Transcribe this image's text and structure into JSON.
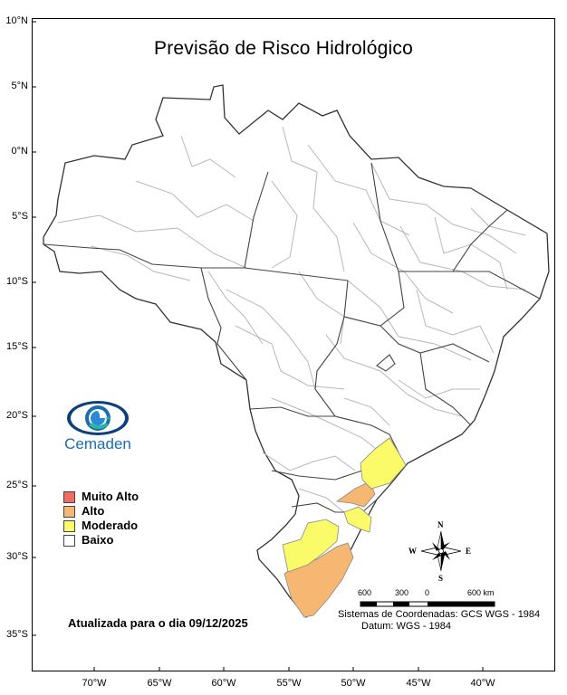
{
  "title": "Previsão de Risco Hidrológico",
  "latitude_labels": [
    "10°N",
    "5°N",
    "0°N",
    "5°S",
    "10°S",
    "15°S",
    "20°S",
    "25°S",
    "30°S",
    "35°S"
  ],
  "longitude_labels": [
    "70°W",
    "65°W",
    "60°W",
    "55°W",
    "50°W",
    "45°W",
    "40°W"
  ],
  "logo": {
    "text": "Cemaden"
  },
  "legend": [
    {
      "label": "Muito Alto",
      "color": "#f26c64"
    },
    {
      "label": "Alto",
      "color": "#f5b772"
    },
    {
      "label": "Moderado",
      "color": "#fbfb6a"
    },
    {
      "label": "Baixo",
      "color": "#ffffff"
    }
  ],
  "updated_text": "Atualizada para o dia 09/12/2025",
  "scale_bar": {
    "labels": [
      "600",
      "300",
      "0",
      "600 km"
    ]
  },
  "compass": {
    "north": "N",
    "south": "S",
    "east": "E",
    "west": "W"
  },
  "coordinate_system": "Sistemas de Coordenadas: GCS WGS - 1984",
  "datum": "Datum: WGS - 1984"
}
